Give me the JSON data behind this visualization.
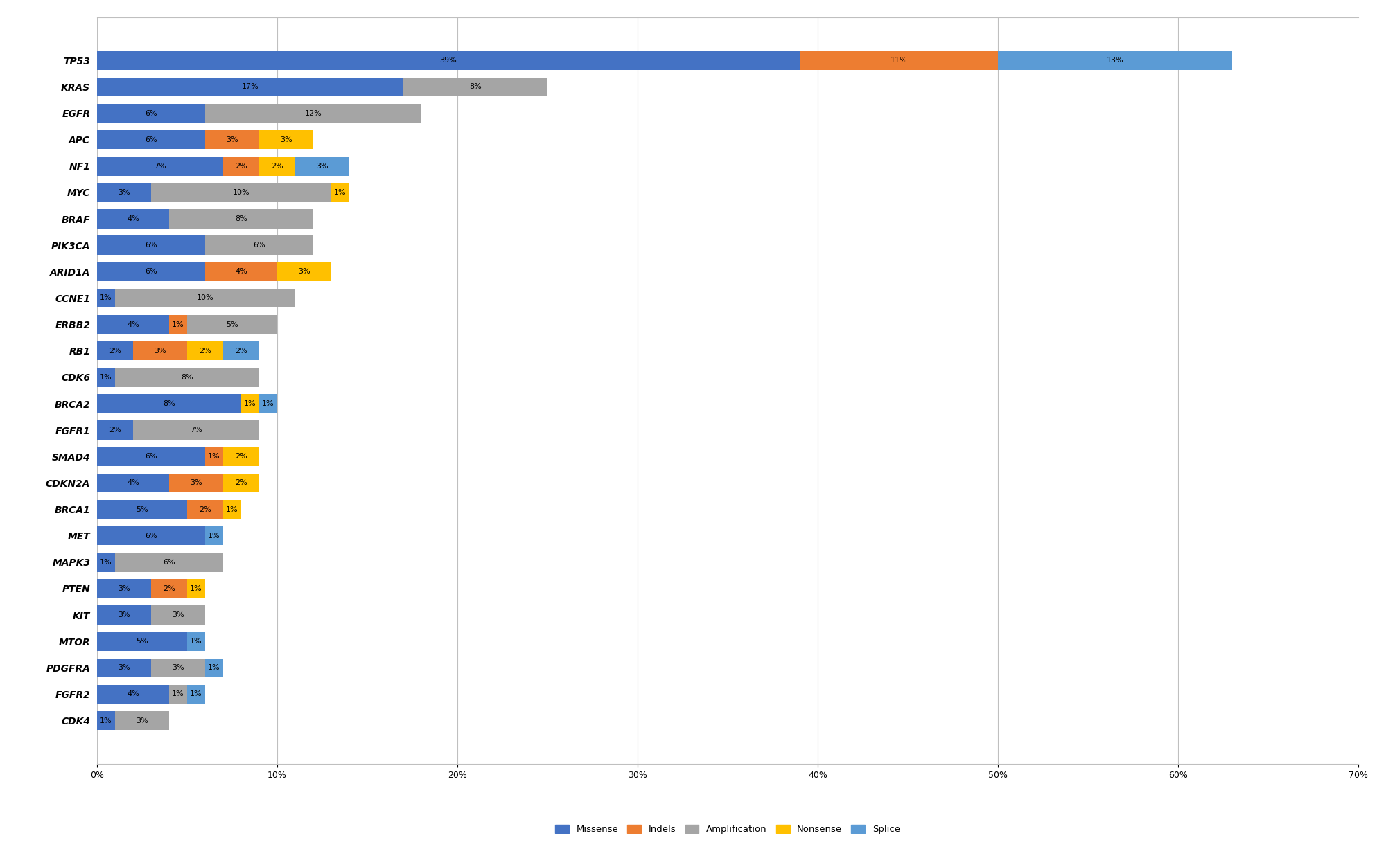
{
  "genes": [
    "TP53",
    "KRAS",
    "EGFR",
    "APC",
    "NF1",
    "MYC",
    "BRAF",
    "PIK3CA",
    "ARID1A",
    "CCNE1",
    "ERBB2",
    "RB1",
    "CDK6",
    "BRCA2",
    "FGFR1",
    "SMAD4",
    "CDKN2A",
    "BRCA1",
    "MET",
    "MAPK3",
    "PTEN",
    "KIT",
    "MTOR",
    "PDGFRA",
    "FGFR2",
    "CDK4"
  ],
  "missense": [
    39,
    17,
    6,
    6,
    7,
    3,
    4,
    6,
    6,
    1,
    4,
    2,
    1,
    8,
    2,
    6,
    4,
    5,
    6,
    1,
    3,
    3,
    5,
    3,
    4,
    1
  ],
  "indels": [
    11,
    0,
    0,
    3,
    2,
    0,
    0,
    0,
    4,
    0,
    1,
    3,
    0,
    0,
    0,
    1,
    3,
    2,
    0,
    0,
    2,
    0,
    0,
    0,
    0,
    0
  ],
  "amplification": [
    0,
    8,
    12,
    0,
    0,
    10,
    8,
    6,
    0,
    10,
    5,
    0,
    8,
    0,
    7,
    0,
    0,
    0,
    0,
    6,
    0,
    3,
    0,
    3,
    1,
    3
  ],
  "nonsense": [
    0,
    0,
    0,
    3,
    2,
    1,
    0,
    0,
    3,
    0,
    0,
    2,
    0,
    1,
    0,
    2,
    2,
    1,
    0,
    0,
    1,
    0,
    0,
    0,
    0,
    0
  ],
  "splice": [
    13,
    0,
    0,
    0,
    3,
    0,
    0,
    0,
    0,
    0,
    0,
    2,
    0,
    1,
    0,
    0,
    0,
    0,
    1,
    0,
    0,
    0,
    1,
    1,
    1,
    0
  ],
  "colors": {
    "missense": "#4472C4",
    "indels": "#ED7D31",
    "amplification": "#A5A5A5",
    "nonsense": "#FFC000",
    "splice": "#5B9BD5"
  },
  "legend_labels": [
    "Missense",
    "Indels",
    "Amplification",
    "Nonsense",
    "Splice"
  ],
  "xlabel_ticks": [
    "0%",
    "10%",
    "20%",
    "30%",
    "40%",
    "50%",
    "60%",
    "70%"
  ],
  "xlabel_values": [
    0,
    10,
    20,
    30,
    40,
    50,
    60,
    70
  ],
  "bar_height": 0.72,
  "figsize": [
    20.0,
    12.26
  ],
  "dpi": 100
}
